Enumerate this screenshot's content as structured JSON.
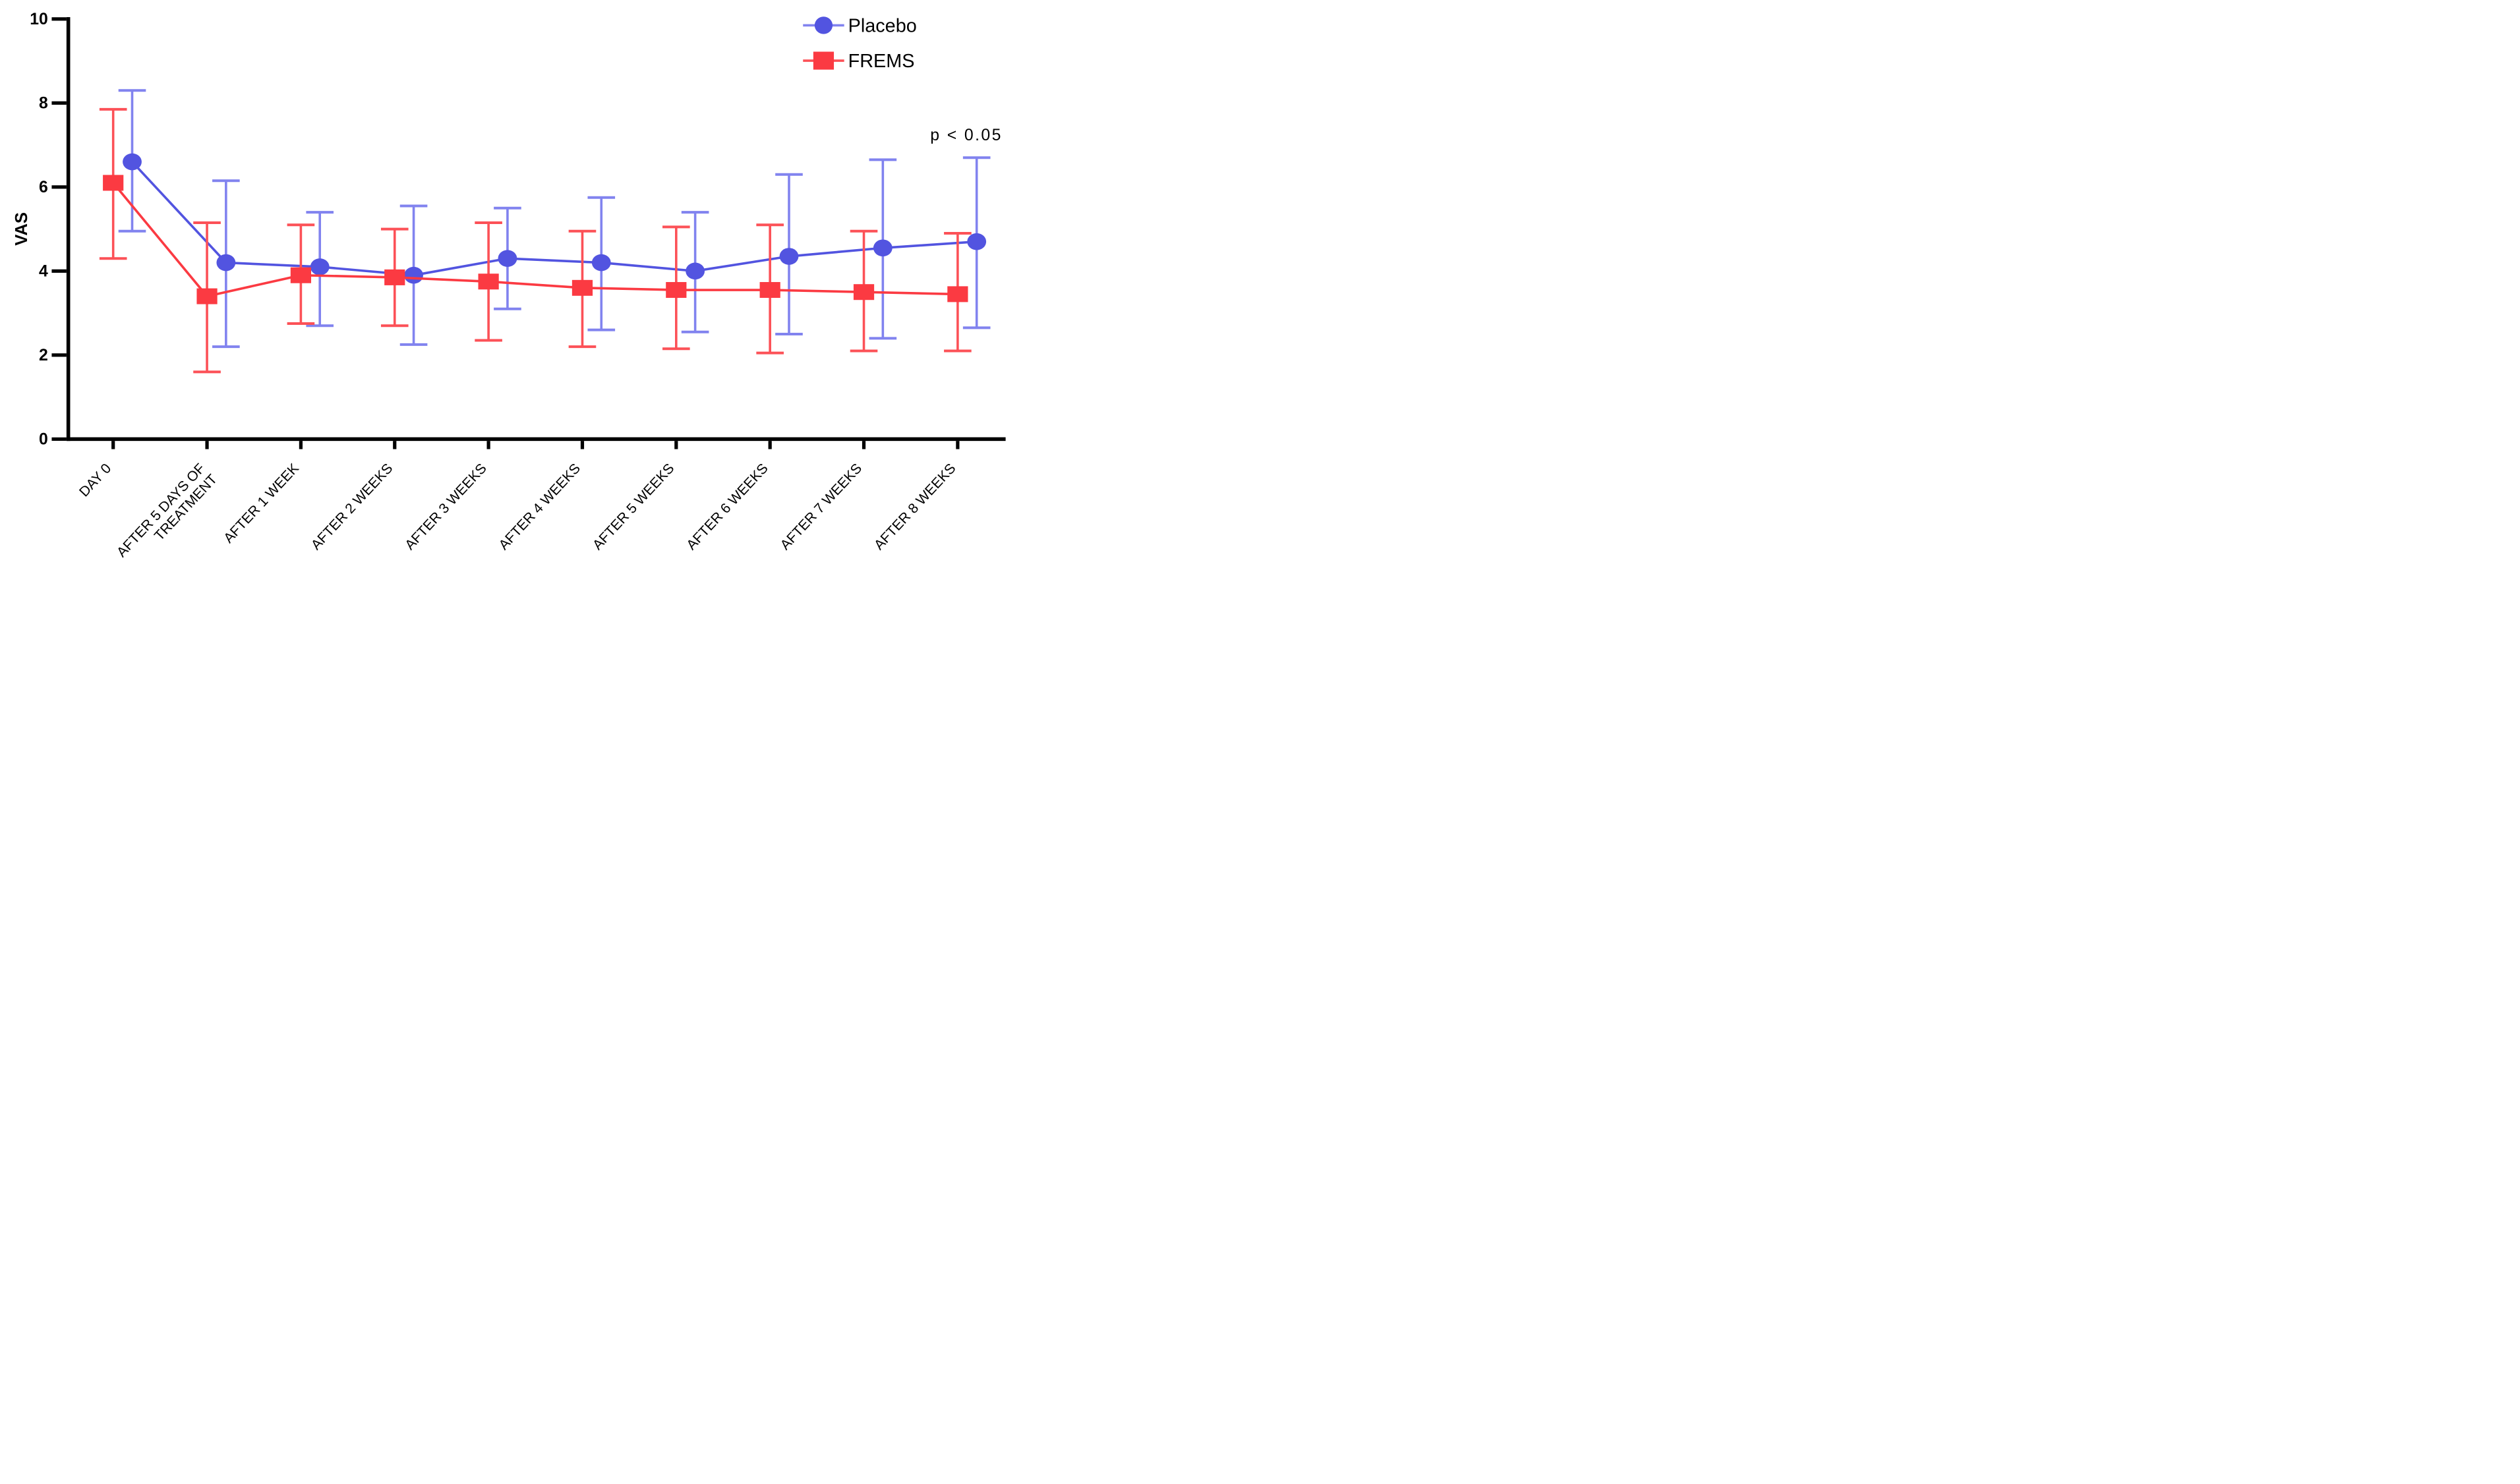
{
  "figure": {
    "background": "#ffffff"
  },
  "chart_data": {
    "type": "line",
    "title": "",
    "xlabel": "",
    "ylabel": "VAS",
    "ylim": [
      0,
      10
    ],
    "yticks": [
      0,
      2,
      4,
      6,
      8,
      10
    ],
    "grid": false,
    "legend_position": "top-right",
    "annotation": "p < 0.05",
    "categories": [
      "DAY 0",
      "AFTER 5 DAYS OF TREATMENT",
      "AFTER 1 WEEK",
      "AFTER 2 WEEKS",
      "AFTER 3 WEEKS",
      "AFTER 4 WEEKS",
      "AFTER 5 WEEKS",
      "AFTER 6 WEEKS",
      "AFTER 7 WEEKS",
      "AFTER 8 WEEKS"
    ],
    "category_label_lines": [
      [
        "DAY 0"
      ],
      [
        "AFTER 5 DAYS OF",
        "TREATMENT"
      ],
      [
        "AFTER 1 WEEK"
      ],
      [
        "AFTER 2 WEEKS"
      ],
      [
        "AFTER 3 WEEKS"
      ],
      [
        "AFTER 4 WEEKS"
      ],
      [
        "AFTER 5 WEEKS"
      ],
      [
        "AFTER 6 WEEKS"
      ],
      [
        "AFTER 7 WEEKS"
      ],
      [
        "AFTER 8 WEEKS"
      ]
    ],
    "series": [
      {
        "name": "Placebo",
        "marker": "circle",
        "color": "#5254e0",
        "error_color": "#8183ef",
        "x_offset": 72,
        "values": [
          6.6,
          4.2,
          4.1,
          3.9,
          4.3,
          4.2,
          4.0,
          4.35,
          4.55,
          4.7
        ],
        "err_low": [
          4.95,
          2.2,
          2.7,
          2.25,
          3.1,
          2.6,
          2.55,
          2.5,
          2.4,
          2.65
        ],
        "err_high": [
          8.3,
          6.15,
          5.4,
          5.55,
          5.5,
          5.75,
          5.4,
          6.3,
          6.65,
          6.7
        ]
      },
      {
        "name": "FREMS",
        "marker": "square",
        "color": "#fb3a42",
        "error_color": "#fc5157",
        "x_offset": 0,
        "values": [
          6.1,
          3.4,
          3.9,
          3.85,
          3.75,
          3.6,
          3.55,
          3.55,
          3.5,
          3.45
        ],
        "err_low": [
          4.3,
          1.6,
          2.75,
          2.7,
          2.35,
          2.2,
          2.15,
          2.05,
          2.1,
          2.1
        ],
        "err_high": [
          7.85,
          5.15,
          5.1,
          5.0,
          5.15,
          4.95,
          5.05,
          5.1,
          4.95,
          4.9
        ]
      }
    ]
  },
  "legend": [
    {
      "label": "Placebo",
      "marker": "circle",
      "color": "#5254e0",
      "error_color": "#8183ef"
    },
    {
      "label": "FREMS",
      "marker": "square",
      "color": "#fb3a42",
      "error_color": "#fc5157"
    }
  ]
}
